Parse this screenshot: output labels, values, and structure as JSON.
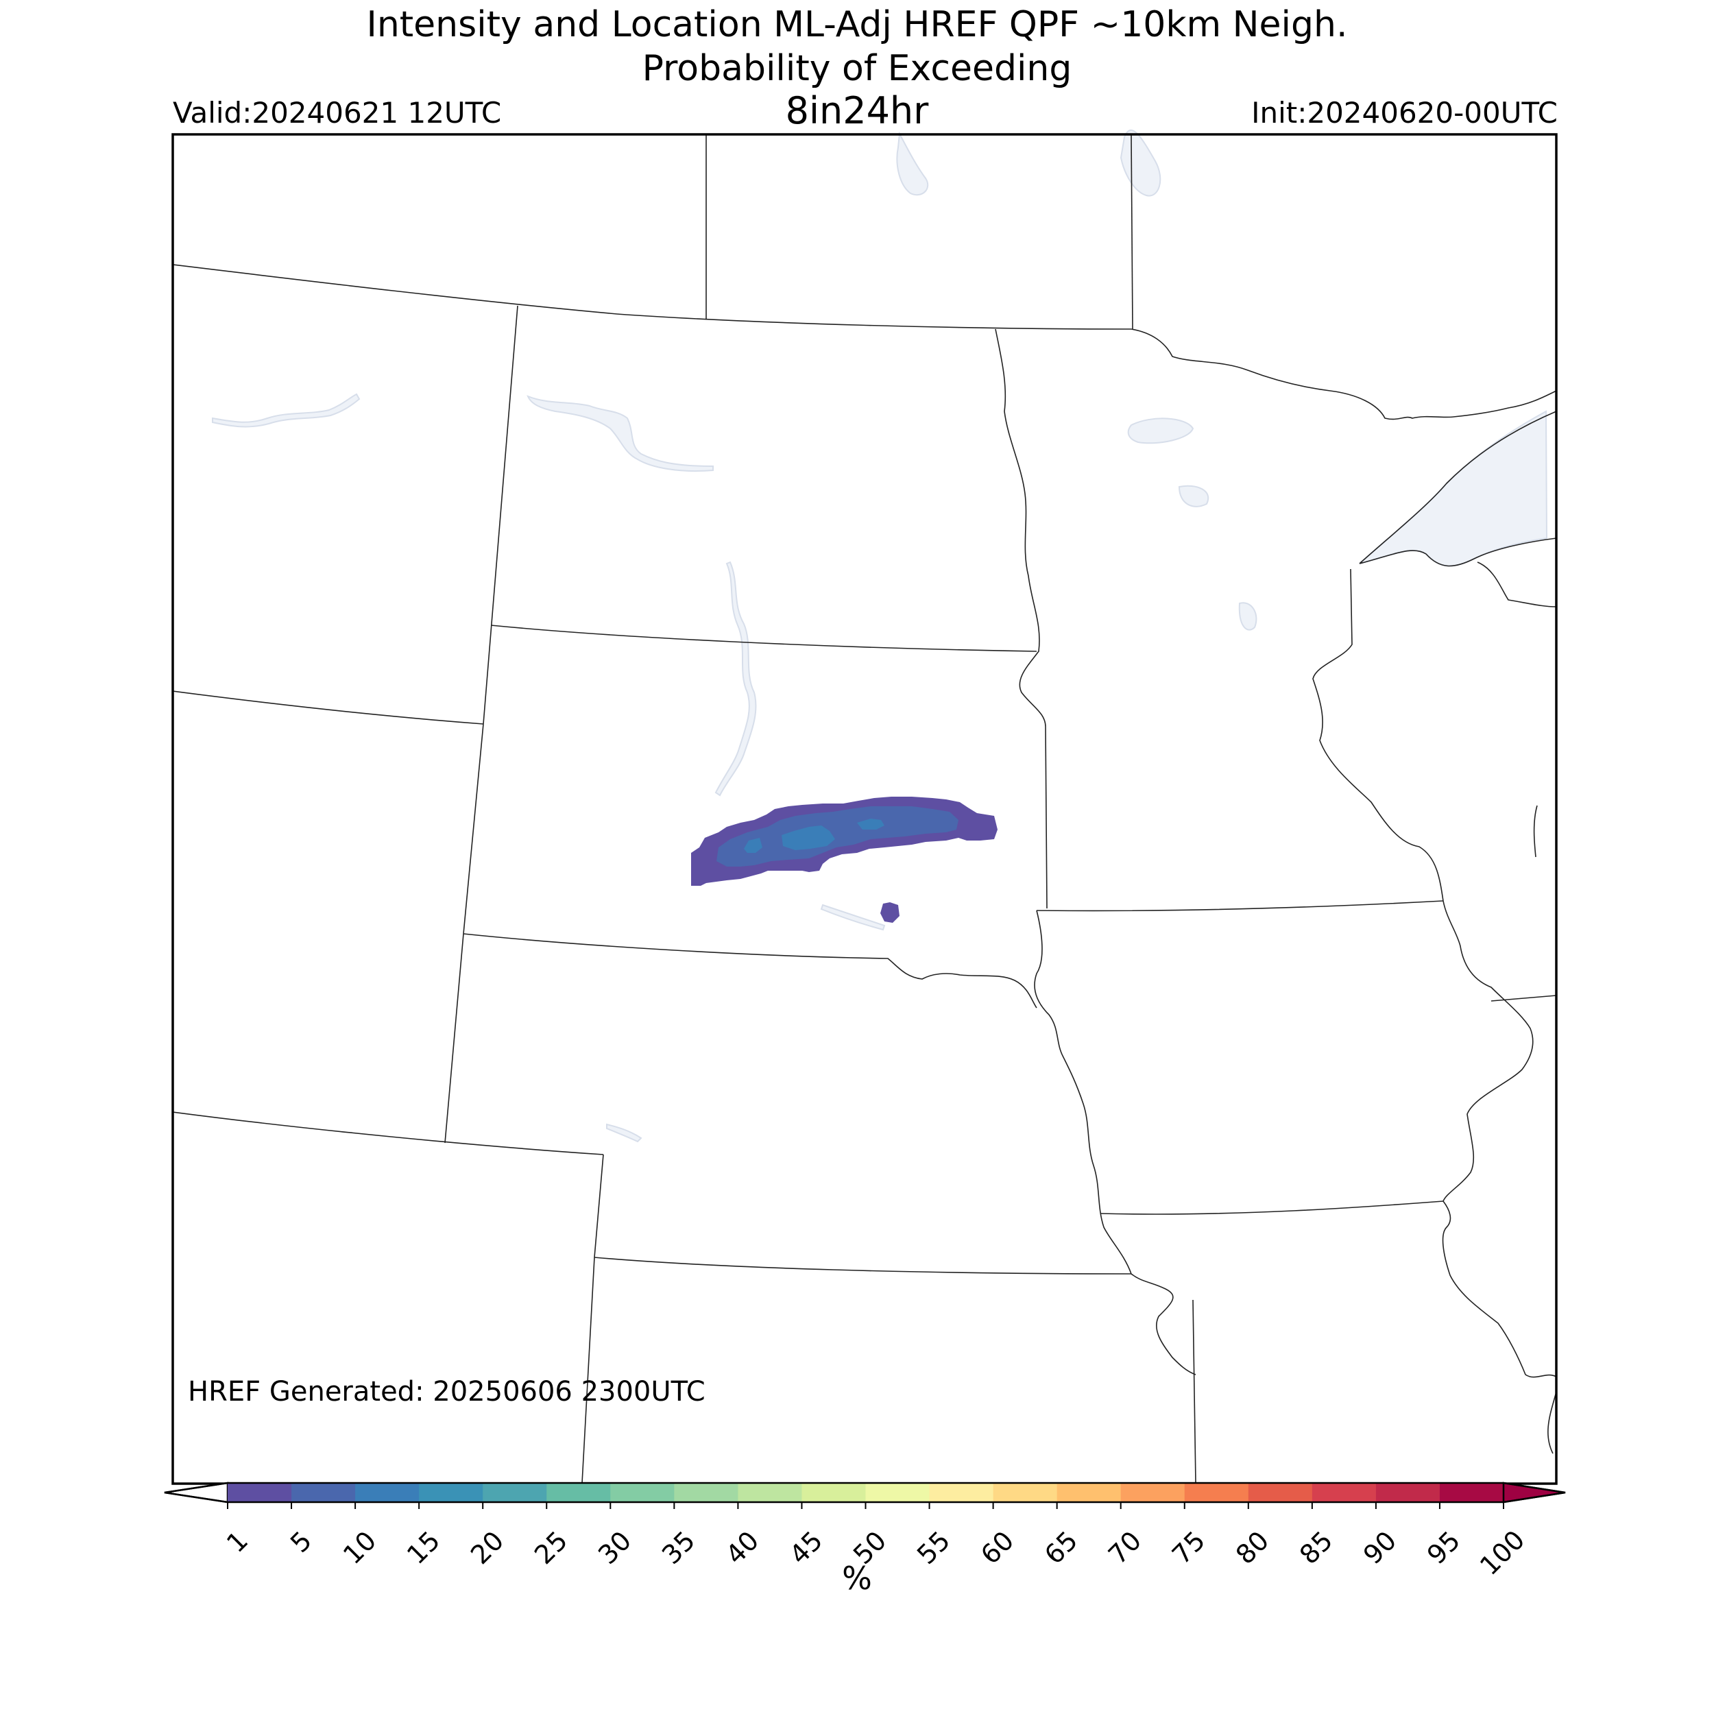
{
  "header": {
    "title_line1": "Intensity and Location ML-Adj HREF QPF ~10km Neigh.",
    "title_line2": "Probability of Exceeding",
    "title_line3": "8in24hr",
    "valid": "Valid:20240621 12UTC",
    "init": "Init:20240620-00UTC"
  },
  "footer": {
    "generated": "HREF Generated: 20250606 2300UTC"
  },
  "colorbar": {
    "unit": "%",
    "ticks": [
      "1",
      "5",
      "10",
      "15",
      "20",
      "25",
      "30",
      "35",
      "40",
      "45",
      "50",
      "55",
      "60",
      "65",
      "70",
      "75",
      "80",
      "85",
      "90",
      "95",
      "100"
    ],
    "colors": [
      "#5e4fa2",
      "#4a67ad",
      "#3a7eb8",
      "#3a92b6",
      "#4da5b0",
      "#66bda5",
      "#83cca4",
      "#a2d9a3",
      "#bee5a0",
      "#d8ef9b",
      "#eef8a6",
      "#fdeda0",
      "#fed985",
      "#fec06e",
      "#fca15f",
      "#f57e4f",
      "#e55c49",
      "#d6404e",
      "#c12a4a",
      "#a70a44"
    ],
    "under_color": "#ffffff",
    "over_color": "#9e0142"
  },
  "map": {
    "water_color": "#eef2f8",
    "probability_colors": [
      "#5e4fa2",
      "#4a67ad",
      "#3a7eb8"
    ]
  }
}
